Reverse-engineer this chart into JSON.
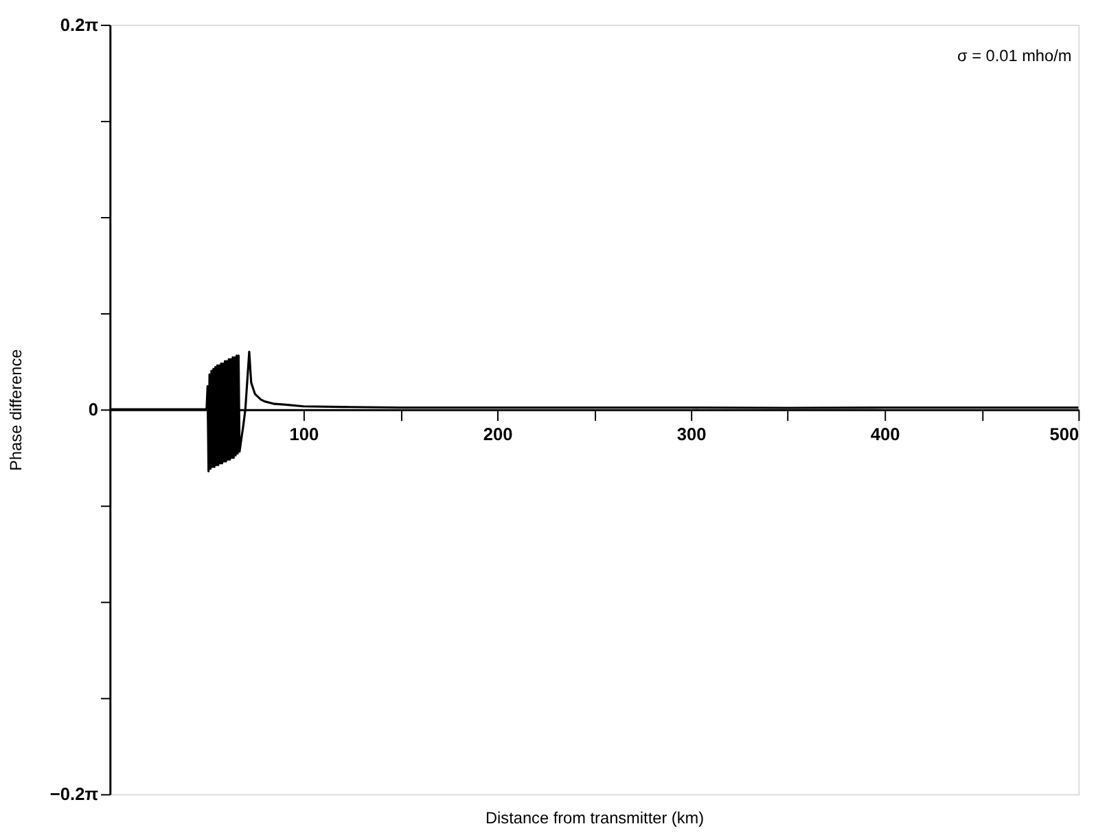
{
  "chart_data": {
    "type": "line",
    "xlabel": "Distance from transmitter (km)",
    "ylabel": "Phase difference",
    "annotations": [
      "σ = 0.01 mho/m"
    ],
    "xlim": [
      0,
      500
    ],
    "ylim": [
      -0.6283,
      0.6283
    ],
    "xticks": [
      {
        "value": 50,
        "label": null
      },
      100,
      {
        "value": 150,
        "label": null
      },
      200,
      {
        "value": 250,
        "label": null
      },
      300,
      {
        "value": 350,
        "label": null
      },
      400,
      {
        "value": 450,
        "label": null
      },
      500
    ],
    "yticks": [
      {
        "value": -0.6283,
        "label": "−0.2π"
      },
      {
        "value": -0.4712,
        "label": null
      },
      {
        "value": -0.3142,
        "label": null
      },
      {
        "value": -0.1571,
        "label": null
      },
      0,
      {
        "value": 0.1571,
        "label": null
      },
      {
        "value": 0.3142,
        "label": null
      },
      {
        "value": 0.4712,
        "label": null
      },
      {
        "value": 0.6283,
        "label": "0.2π"
      }
    ],
    "grid": false,
    "marker": "none",
    "line_style": "solid",
    "series": [
      {
        "color": "#000000",
        "x": [
          0,
          50,
          50.5,
          51,
          51.5,
          52,
          52.5,
          53,
          53.5,
          54,
          54.5,
          55,
          55.5,
          56,
          56.5,
          57,
          57.5,
          58,
          58.5,
          59,
          59.5,
          60,
          60.5,
          61,
          61.5,
          62,
          62.5,
          63,
          63.5,
          64,
          64.5,
          65,
          65.5,
          66,
          66.5,
          67,
          68,
          69,
          70,
          71,
          72,
          73,
          75,
          78,
          80,
          85,
          90,
          100,
          120,
          150,
          200,
          250,
          300,
          350,
          400,
          450,
          500
        ],
        "values": [
          0,
          0,
          0.038,
          -0.101,
          0.057,
          -0.097,
          0.063,
          -0.094,
          0.066,
          -0.094,
          0.069,
          -0.091,
          0.072,
          -0.091,
          0.072,
          -0.088,
          0.075,
          -0.088,
          0.075,
          -0.085,
          0.079,
          -0.085,
          0.079,
          -0.082,
          0.082,
          -0.082,
          0.082,
          -0.079,
          0.085,
          -0.079,
          0.085,
          -0.075,
          0.088,
          -0.072,
          0.088,
          -0.069,
          -0.047,
          -0.025,
          0.0,
          0.047,
          0.094,
          0.044,
          0.025,
          0.016,
          0.013,
          0.009,
          0.008,
          0.005,
          0.004,
          0.003,
          0.003,
          0.003,
          0.003,
          0.0025,
          0.003,
          0.003,
          0.003
        ]
      }
    ]
  }
}
